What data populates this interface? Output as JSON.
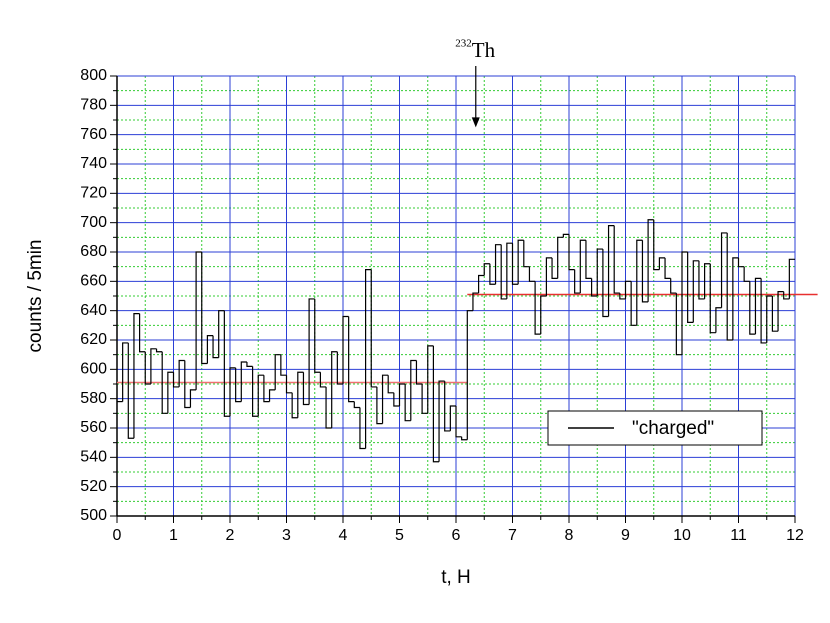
{
  "chart_data": {
    "type": "step",
    "x_label": "t, H",
    "y_label": "counts / 5min",
    "xlim": [
      0,
      12
    ],
    "ylim": [
      500,
      800
    ],
    "xticks": [
      0,
      1,
      2,
      3,
      4,
      5,
      6,
      7,
      8,
      9,
      10,
      11,
      12
    ],
    "yticks": [
      500,
      520,
      540,
      560,
      580,
      600,
      620,
      640,
      660,
      680,
      700,
      720,
      740,
      760,
      780,
      800
    ],
    "x_minor_ticks": [
      0.5,
      1.5,
      2.5,
      3.5,
      4.5,
      5.5,
      6.5,
      7.5,
      8.5,
      9.5,
      10.5,
      11.5
    ],
    "y_minor_ticks": [
      510,
      530,
      550,
      570,
      590,
      610,
      630,
      650,
      670,
      690,
      710,
      730,
      750,
      770,
      790
    ],
    "grid": true,
    "grid_color": "#2b3fd6",
    "minor_grid_color": "#33cc33",
    "legend": "lower right",
    "annotation": {
      "superscript": "232",
      "text": "Th",
      "x": 6.35,
      "y": 765
    },
    "fit_lines": [
      {
        "color": "#f07070",
        "x": [
          0,
          6.2
        ],
        "values": [
          591,
          591
        ]
      },
      {
        "color": "#e83030",
        "x": [
          6.2,
          12.4
        ],
        "values": [
          651,
          651
        ]
      }
    ],
    "series": [
      {
        "name": "\"charged\"",
        "color": "#000000",
        "x": [
          0.0,
          0.1,
          0.2,
          0.3,
          0.4,
          0.5,
          0.6,
          0.7,
          0.8,
          0.9,
          1.0,
          1.1,
          1.2,
          1.3,
          1.4,
          1.5,
          1.6,
          1.7,
          1.8,
          1.9,
          2.0,
          2.1,
          2.2,
          2.3,
          2.4,
          2.5,
          2.6,
          2.7,
          2.8,
          2.9,
          3.0,
          3.1,
          3.2,
          3.3,
          3.4,
          3.5,
          3.6,
          3.7,
          3.8,
          3.9,
          4.0,
          4.1,
          4.2,
          4.3,
          4.4,
          4.5,
          4.6,
          4.7,
          4.8,
          4.9,
          5.0,
          5.1,
          5.2,
          5.3,
          5.4,
          5.5,
          5.6,
          5.7,
          5.8,
          5.9,
          6.0,
          6.1,
          6.2,
          6.3,
          6.4,
          6.5,
          6.6,
          6.7,
          6.8,
          6.9,
          7.0,
          7.1,
          7.2,
          7.3,
          7.4,
          7.5,
          7.6,
          7.7,
          7.8,
          7.9,
          8.0,
          8.1,
          8.2,
          8.3,
          8.4,
          8.5,
          8.6,
          8.7,
          8.8,
          8.9,
          9.0,
          9.1,
          9.2,
          9.3,
          9.4,
          9.5,
          9.6,
          9.7,
          9.8,
          9.9,
          10.0,
          10.1,
          10.2,
          10.3,
          10.4,
          10.5,
          10.6,
          10.7,
          10.8,
          10.9,
          11.0,
          11.1,
          11.2,
          11.3,
          11.4,
          11.5,
          11.6,
          11.7,
          11.8,
          11.9
        ],
        "values": [
          578,
          618,
          553,
          638,
          612,
          590,
          614,
          612,
          570,
          598,
          588,
          606,
          574,
          586,
          680,
          604,
          623,
          608,
          640,
          568,
          601,
          578,
          605,
          602,
          568,
          596,
          578,
          586,
          610,
          596,
          584,
          567,
          598,
          576,
          648,
          598,
          588,
          560,
          612,
          590,
          636,
          578,
          574,
          546,
          668,
          588,
          563,
          596,
          584,
          575,
          590,
          565,
          606,
          590,
          570,
          616,
          537,
          592,
          558,
          575,
          554,
          552,
          640,
          652,
          664,
          672,
          658,
          685,
          648,
          686,
          658,
          688,
          670,
          660,
          624,
          650,
          676,
          662,
          690,
          692,
          668,
          652,
          688,
          662,
          650,
          682,
          636,
          698,
          652,
          648,
          660,
          630,
          688,
          646,
          702,
          668,
          676,
          662,
          652,
          610,
          680,
          632,
          674,
          648,
          672,
          625,
          642,
          693,
          620,
          676,
          670,
          660,
          624,
          662,
          618,
          650,
          626,
          653,
          648,
          675
        ]
      }
    ]
  }
}
